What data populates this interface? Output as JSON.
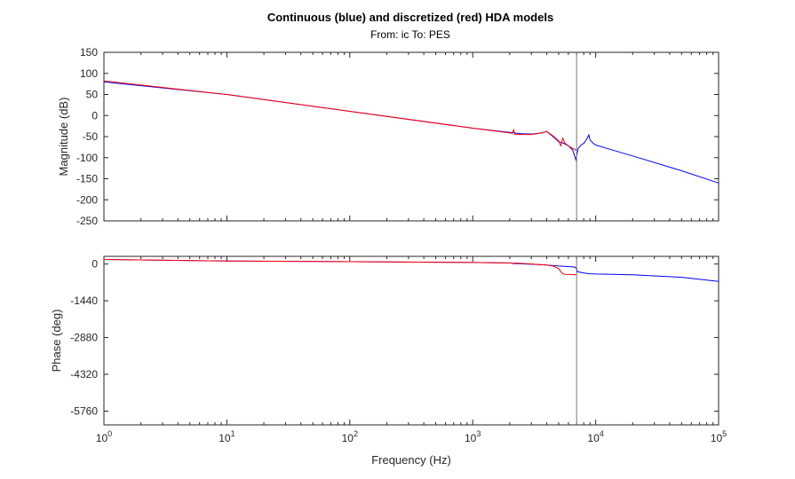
{
  "chart_data": {
    "type": "line",
    "title": "Continuous (blue) and discretized (red) HDA models",
    "subtitle": "From: ic  To: PES",
    "xlabel": "Frequency (Hz)",
    "xscale": "log",
    "xlim": [
      1,
      100000
    ],
    "x_tick_labels": [
      {
        "base": "10",
        "exp": "0",
        "value": 1
      },
      {
        "base": "10",
        "exp": "1",
        "value": 10
      },
      {
        "base": "10",
        "exp": "2",
        "value": 100
      },
      {
        "base": "10",
        "exp": "3",
        "value": 1000
      },
      {
        "base": "10",
        "exp": "4",
        "value": 10000
      },
      {
        "base": "10",
        "exp": "5",
        "value": 100000
      }
    ],
    "vertical_marker": {
      "x": 7000,
      "color": "#777777"
    },
    "grid": false,
    "series_colors": {
      "continuous": "#0000ff",
      "discretized": "#ff0000"
    },
    "panels": [
      {
        "ylabel": "Magnitude (dB)",
        "ylim": [
          -250,
          150
        ],
        "yticks": [
          "150",
          "100",
          "50",
          "0",
          "-50",
          "-100",
          "-150",
          "-200",
          "-250"
        ],
        "ytick_values": [
          150,
          100,
          50,
          0,
          -50,
          -100,
          -150,
          -200,
          -250
        ],
        "series": [
          {
            "key": "continuous",
            "x": [
              1,
              10,
              100,
              1000,
              2000,
              2500,
              3000,
              3500,
              4000,
              4500,
              5000,
              5500,
              6000,
              6500,
              6900,
              7000,
              7200,
              7600,
              8000,
              8500,
              8800,
              9000,
              9500,
              10000,
              12000,
              20000,
              50000,
              100000
            ],
            "y": [
              80,
              50,
              10,
              -30,
              -40,
              -43,
              -44,
              -42,
              -38,
              -50,
              -62,
              -66,
              -72,
              -82,
              -105,
              -95,
              -78,
              -70,
              -66,
              -55,
              -46,
              -58,
              -65,
              -70,
              -77,
              -96,
              -131,
              -160
            ]
          },
          {
            "key": "discretized",
            "x": [
              1,
              10,
              100,
              1000,
              2100,
              2150,
              2200,
              2500,
              3000,
              3500,
              4000,
              4500,
              5000,
              5200,
              5400,
              5600,
              6000,
              6500,
              6900,
              7000
            ],
            "y": [
              82,
              50,
              10,
              -30,
              -42,
              -34,
              -45,
              -45,
              -45,
              -42,
              -38,
              -48,
              -60,
              -72,
              -54,
              -65,
              -72,
              -78,
              -82,
              -80
            ]
          }
        ]
      },
      {
        "ylabel": "Phase (deg)",
        "ylim": [
          -6300,
          300
        ],
        "yticks": [
          "0",
          "-1440",
          "-2880",
          "-4320",
          "-5760"
        ],
        "ytick_values": [
          0,
          -1440,
          -2880,
          -4320,
          -5760
        ],
        "series": [
          {
            "key": "continuous",
            "x": [
              1,
              10,
              100,
              1000,
              2000,
              2200,
              3000,
              4000,
              5000,
              6000,
              6800,
              7000,
              7100,
              8000,
              9000,
              10000,
              20000,
              50000,
              100000
            ],
            "y": [
              180,
              120,
              90,
              60,
              40,
              20,
              -10,
              -40,
              -80,
              -100,
              -120,
              -200,
              -300,
              -350,
              -380,
              -390,
              -420,
              -520,
              -680
            ]
          },
          {
            "key": "discretized",
            "x": [
              1,
              10,
              100,
              1000,
              2100,
              2150,
              2200,
              3000,
              4000,
              4500,
              5000,
              5300,
              5600,
              6000,
              6800,
              7000
            ],
            "y": [
              180,
              120,
              90,
              60,
              40,
              0,
              40,
              0,
              -40,
              -80,
              -180,
              -350,
              -400,
              -410,
              -420,
              -430
            ]
          }
        ]
      }
    ]
  }
}
